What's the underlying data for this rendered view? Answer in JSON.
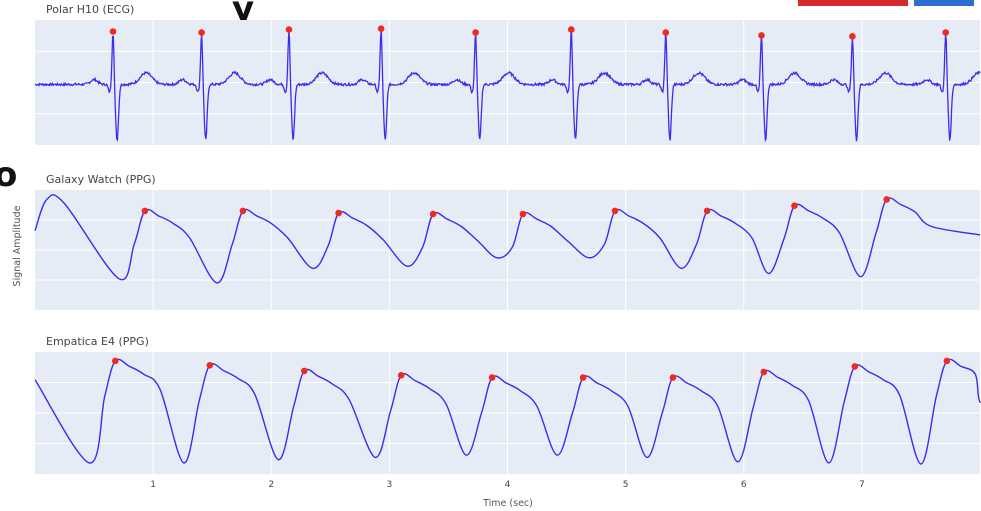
{
  "figure": {
    "ylabel": "Signal Amplitude",
    "xlabel": "Time (sec)",
    "x_ticks": [
      1,
      2,
      3,
      4,
      5,
      6,
      7
    ],
    "xlim": [
      0,
      8
    ]
  },
  "chart_data": [
    {
      "type": "line",
      "title": "Polar H10 (ECG)",
      "line_color": "#3d2bf0",
      "marker_color": "#f02a1e",
      "grid": true,
      "peaks_x": [
        0.66,
        1.41,
        2.15,
        2.93,
        3.73,
        4.54,
        5.34,
        6.15,
        6.92,
        7.71
      ],
      "peaks_y": [
        0.93,
        0.92,
        0.95,
        0.96,
        0.92,
        0.95,
        0.92,
        0.89,
        0.88,
        0.92
      ],
      "ylim": [
        -0.25,
        1.05
      ]
    },
    {
      "type": "line",
      "title": "Galaxy Watch (PPG)",
      "line_color": "#3d2bf0",
      "marker_color": "#f02a1e",
      "grid": true,
      "peaks_x": [
        0.93,
        1.76,
        2.57,
        3.37,
        4.13,
        4.91,
        5.69,
        6.43,
        7.21
      ],
      "peaks_y": [
        0.85,
        0.85,
        0.83,
        0.82,
        0.82,
        0.85,
        0.85,
        0.9,
        0.96
      ],
      "ylim": [
        -0.1,
        1.05
      ]
    },
    {
      "type": "line",
      "title": "Empatica E4 (PPG)",
      "line_color": "#3d2bf0",
      "marker_color": "#f02a1e",
      "grid": true,
      "peaks_x": [
        0.68,
        1.48,
        2.28,
        3.1,
        3.87,
        4.64,
        5.4,
        6.17,
        6.94,
        7.72
      ],
      "peaks_y": [
        0.97,
        0.93,
        0.88,
        0.84,
        0.82,
        0.82,
        0.82,
        0.87,
        0.92,
        0.97
      ],
      "ylim": [
        -0.05,
        1.05
      ]
    }
  ]
}
